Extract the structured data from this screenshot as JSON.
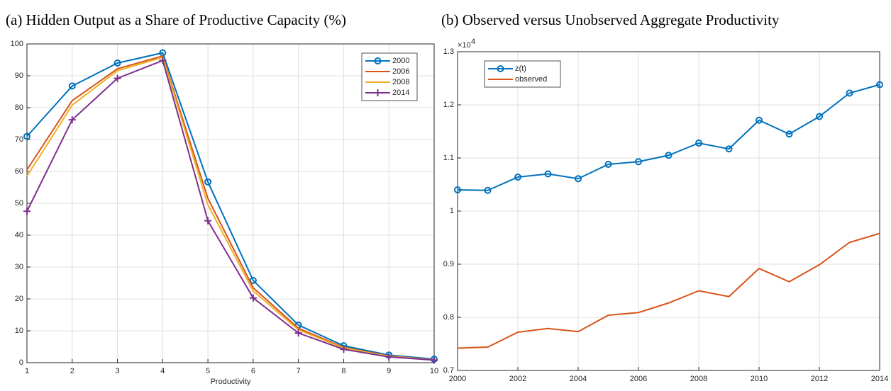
{
  "chart_data": [
    {
      "type": "line",
      "title": "(a) Hidden Output as a Share of Productive Capacity (%)",
      "x_label": "Productivity",
      "x": [
        1,
        2,
        3,
        4,
        5,
        6,
        7,
        8,
        9,
        10
      ],
      "series": [
        {
          "name": "2000",
          "color": "#0072BD",
          "marker": "circle",
          "values": [
            71,
            86.8,
            94,
            97.2,
            56.7,
            25.8,
            11.8,
            5.3,
            2.4,
            1.1
          ]
        },
        {
          "name": "2006",
          "color": "#D95319",
          "marker": "none",
          "values": [
            60.5,
            82.2,
            92.2,
            96.2,
            51.5,
            23.5,
            10.8,
            4.8,
            2.1,
            0.9
          ]
        },
        {
          "name": "2008",
          "color": "#EDB120",
          "marker": "none",
          "values": [
            58.5,
            80.8,
            91.6,
            95.8,
            49.5,
            22.5,
            10.3,
            4.6,
            2.0,
            0.85
          ]
        },
        {
          "name": "2014",
          "color": "#7E2F8E",
          "marker": "plus",
          "values": [
            47.5,
            76.2,
            89.2,
            94.8,
            44.5,
            20.3,
            9.3,
            4.2,
            1.8,
            0.8
          ]
        }
      ],
      "xlim": [
        1,
        10
      ],
      "xticks": [
        1,
        2,
        3,
        4,
        5,
        6,
        7,
        8,
        9,
        10
      ],
      "ylim": [
        0,
        100
      ],
      "yticks": [
        0,
        10,
        20,
        30,
        40,
        50,
        60,
        70,
        80,
        90,
        100
      ],
      "grid": true,
      "legend": "northeast"
    },
    {
      "type": "line",
      "title": "(b) Observed versus Unobserved Aggregate Productivity",
      "y_multiplier": {
        "base": "×10",
        "exponent": "4"
      },
      "x": [
        2000,
        2001,
        2002,
        2003,
        2004,
        2005,
        2006,
        2007,
        2008,
        2009,
        2010,
        2011,
        2012,
        2013,
        2014
      ],
      "series": [
        {
          "name": "z(t)",
          "color": "#0072BD",
          "marker": "circle",
          "values": [
            1.04,
            1.039,
            1.064,
            1.07,
            1.061,
            1.088,
            1.093,
            1.105,
            1.128,
            1.117,
            1.171,
            1.145,
            1.178,
            1.222,
            1.238
          ]
        },
        {
          "name": "observed",
          "color": "#D95319",
          "marker": "none",
          "values": [
            0.742,
            0.744,
            0.772,
            0.779,
            0.773,
            0.804,
            0.809,
            0.827,
            0.85,
            0.839,
            0.892,
            0.867,
            0.899,
            0.941,
            0.958
          ]
        }
      ],
      "xlim": [
        2000,
        2014
      ],
      "xticks": [
        2000,
        2002,
        2004,
        2006,
        2008,
        2010,
        2012,
        2014
      ],
      "ylim": [
        0.7,
        1.3
      ],
      "yticks": [
        0.7,
        0.8,
        0.9,
        1,
        1.1,
        1.2,
        1.3
      ],
      "grid": true,
      "legend": "northwest"
    }
  ]
}
